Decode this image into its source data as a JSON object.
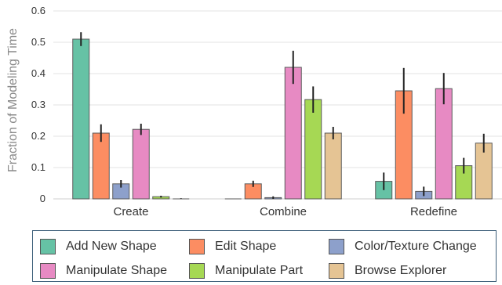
{
  "chart_data": {
    "type": "bar",
    "ylabel": "Fraction of Modeling Time",
    "ylim": [
      0,
      0.6
    ],
    "yticks": [
      {
        "value": 0,
        "label": "0"
      },
      {
        "value": 0.1,
        "label": "0.1"
      },
      {
        "value": 0.2,
        "label": "0.2"
      },
      {
        "value": 0.3,
        "label": "0.3"
      },
      {
        "value": 0.4,
        "label": "0.4"
      },
      {
        "value": 0.5,
        "label": "0.5"
      },
      {
        "value": 0.6,
        "label": "0.6"
      }
    ],
    "grid": true,
    "legend_position": "bottom",
    "categories": [
      "Create",
      "Combine",
      "Redefine"
    ],
    "series": [
      {
        "name": "Add New Shape",
        "color": "#66c2a5",
        "values": [
          0.51,
          0.0,
          0.056
        ],
        "errors": [
          0.022,
          0.0,
          0.028
        ]
      },
      {
        "name": "Edit Shape",
        "color": "#fc8d62",
        "values": [
          0.21,
          0.048,
          0.345
        ],
        "errors": [
          0.028,
          0.01,
          0.073
        ]
      },
      {
        "name": "Color/Texture Change",
        "color": "#8da0cb",
        "values": [
          0.048,
          0.004,
          0.024
        ],
        "errors": [
          0.012,
          0.004,
          0.015
        ]
      },
      {
        "name": "Manipulate Shape",
        "color": "#e78ac3",
        "values": [
          0.222,
          0.42,
          0.352
        ],
        "errors": [
          0.018,
          0.053,
          0.05
        ]
      },
      {
        "name": "Manipulate Part",
        "color": "#a6d854",
        "values": [
          0.007,
          0.317,
          0.106
        ],
        "errors": [
          0.003,
          0.042,
          0.025
        ]
      },
      {
        "name": "Browse Explorer",
        "color": "#e5c494",
        "values": [
          0.0,
          0.21,
          0.178
        ],
        "errors": [
          0.002,
          0.02,
          0.03
        ]
      }
    ]
  }
}
